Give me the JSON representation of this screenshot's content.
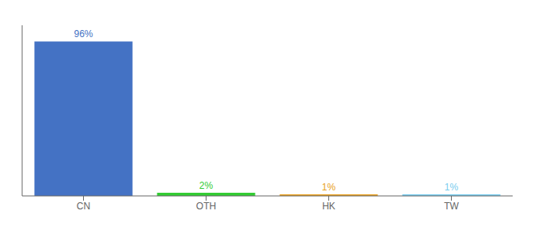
{
  "chart_data": {
    "type": "bar",
    "categories": [
      "CN",
      "OTH",
      "HK",
      "TW"
    ],
    "values": [
      96,
      2,
      1,
      1
    ],
    "value_labels": [
      "96%",
      "2%",
      "1%",
      "1%"
    ],
    "colors": [
      "#4472c4",
      "#33cc33",
      "#e8a020",
      "#77ccee"
    ],
    "ylim": [
      0,
      106
    ],
    "grid": false,
    "data_labels": true,
    "tick_labels": "x"
  }
}
